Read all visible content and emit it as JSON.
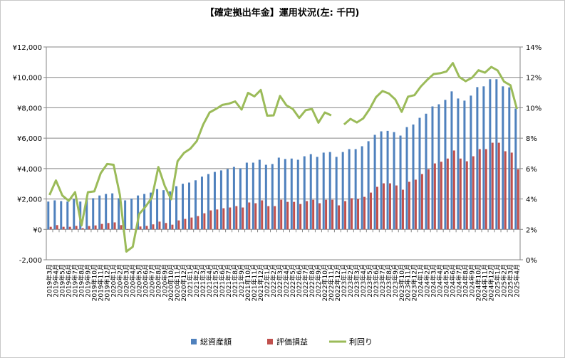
{
  "chart_data": {
    "type": "bar+line",
    "title": "【確定拠出年金】運用状況(左: 千円)",
    "categories": [
      "2019年3月",
      "2019年4月",
      "2019年5月",
      "2019年6月",
      "2019年7月",
      "2019年8月",
      "2019年9月",
      "2019年10月",
      "2019年11月",
      "2019年12月",
      "2020年1月",
      "2020年2月",
      "2020年3月",
      "2020年4月",
      "2020年5月",
      "2020年6月",
      "2020年7月",
      "2020年8月",
      "2020年9月",
      "2020年10月",
      "2020年11月",
      "2020年12月",
      "2021年1月",
      "2021年2月",
      "2021年3月",
      "2021年4月",
      "2021年5月",
      "2021年6月",
      "2021年7月",
      "2021年8月",
      "2021年9月",
      "2021年10月",
      "2021年11月",
      "2021年12月",
      "2022年1月",
      "2022年2月",
      "2022年3月",
      "2022年4月",
      "2022年5月",
      "2022年6月",
      "2022年7月",
      "2022年8月",
      "2022年9月",
      "2022年10月",
      "2022年11月",
      "2022年12月",
      "2023年1月",
      "2023年2月",
      "2023年3月",
      "2023年4月",
      "2023年5月",
      "2023年6月",
      "2023年7月",
      "2023年8月",
      "2023年9月",
      "2023年10月",
      "2023年11月",
      "2023年12月",
      "2024年1月",
      "2024年2月",
      "2024年3月",
      "2024年4月",
      "2024年5月",
      "2024年6月",
      "2024年7月",
      "2024年8月",
      "2024年9月",
      "2024年10月",
      "2024年11月",
      "2024年12月",
      "2025年1月",
      "2025年2月",
      "2025年3月",
      "2025年4月"
    ],
    "series": [
      {
        "name": "総資産額",
        "type": "bar",
        "axis": "left",
        "color": "#4f81bd",
        "values": [
          1830,
          1910,
          1860,
          1830,
          1985,
          1830,
          1970,
          2050,
          2230,
          2330,
          2370,
          2050,
          1910,
          2030,
          2230,
          2330,
          2420,
          2650,
          2580,
          2500,
          2840,
          3000,
          3080,
          3230,
          3470,
          3640,
          3780,
          3880,
          3970,
          4110,
          4020,
          4390,
          4390,
          4580,
          4250,
          4300,
          4720,
          4630,
          4660,
          4580,
          4810,
          4950,
          4770,
          5050,
          5090,
          4770,
          5090,
          5280,
          5280,
          5470,
          5800,
          6220,
          6450,
          6480,
          6400,
          6170,
          6730,
          6900,
          7340,
          7610,
          8090,
          8230,
          8520,
          9080,
          8610,
          8470,
          8800,
          9360,
          9410,
          9880,
          9880,
          9410,
          9340,
          7950
        ]
      },
      {
        "name": "評価損益",
        "type": "bar",
        "axis": "left",
        "color": "#c0504d",
        "values": [
          170,
          280,
          170,
          170,
          230,
          80,
          220,
          260,
          360,
          420,
          460,
          280,
          -30,
          20,
          190,
          230,
          330,
          510,
          420,
          310,
          590,
          690,
          780,
          875,
          1060,
          1250,
          1310,
          1390,
          1440,
          1530,
          1440,
          1770,
          1720,
          1910,
          1530,
          1530,
          1950,
          1810,
          1810,
          1670,
          1860,
          1950,
          1720,
          1950,
          1950,
          1580,
          1860,
          2050,
          2000,
          2140,
          2420,
          2800,
          3030,
          3030,
          2890,
          2610,
          3130,
          3270,
          3640,
          3950,
          4340,
          4450,
          4660,
          5190,
          4660,
          4480,
          4810,
          5280,
          5280,
          5700,
          5700,
          5140,
          5050,
          3950
        ]
      },
      {
        "name": "利回り",
        "type": "line",
        "axis": "right",
        "color": "#9bbb59",
        "values": [
          4.26,
          5.22,
          4.23,
          3.88,
          4.45,
          2.25,
          4.45,
          4.5,
          5.7,
          6.3,
          6.25,
          4.26,
          0.54,
          0.85,
          3.0,
          3.5,
          4.1,
          6.1,
          4.85,
          3.98,
          6.48,
          7.03,
          7.31,
          7.81,
          8.9,
          9.69,
          9.92,
          10.19,
          10.27,
          10.42,
          9.88,
          10.98,
          10.75,
          11.17,
          9.48,
          9.5,
          10.78,
          10.16,
          9.92,
          9.33,
          9.84,
          9.92,
          9.02,
          9.69,
          9.5,
          null,
          8.9,
          9.27,
          9.03,
          9.3,
          9.92,
          10.7,
          11.1,
          10.94,
          10.55,
          9.73,
          10.73,
          10.83,
          11.4,
          11.84,
          12.22,
          12.27,
          12.39,
          12.94,
          12.03,
          11.75,
          11.98,
          12.47,
          12.31,
          12.69,
          12.45,
          11.72,
          11.48,
          9.92
        ]
      }
    ],
    "y_left": {
      "range": [
        -2000,
        12000
      ],
      "ticks": [
        -2000,
        0,
        2000,
        4000,
        6000,
        8000,
        10000,
        12000
      ],
      "tick_labels": [
        "-2,000",
        "¥0",
        "¥2,000",
        "¥4,000",
        "¥6,000",
        "¥8,000",
        "¥10,000",
        "¥12,000"
      ],
      "negative_color": "#ff0000"
    },
    "y_right": {
      "range": [
        0,
        14
      ],
      "ticks": [
        0,
        2,
        4,
        6,
        8,
        10,
        12,
        14
      ],
      "tick_labels": [
        "0%",
        "2%",
        "4%",
        "6%",
        "8%",
        "10%",
        "12%",
        "14%"
      ]
    },
    "grid": true,
    "legend": {
      "position": "bottom",
      "entries": [
        "総資産額",
        "評価損益",
        "利回り"
      ]
    }
  }
}
